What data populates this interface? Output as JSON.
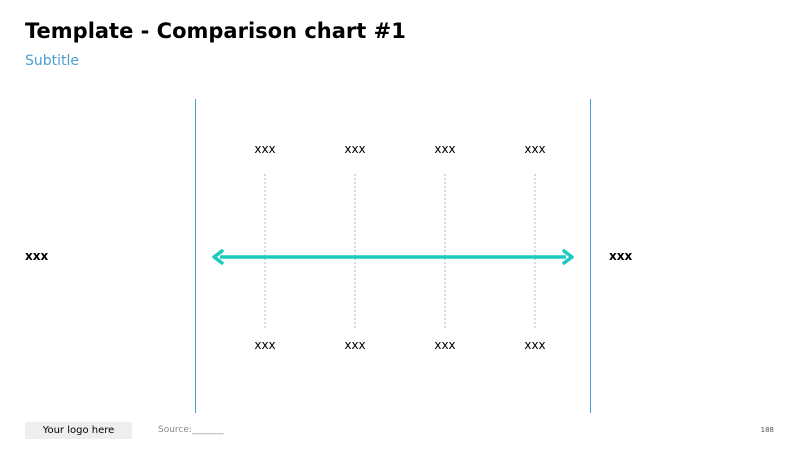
{
  "header": {
    "title": "Template - Comparison chart #1",
    "subtitle": "Subtitle"
  },
  "comparison": {
    "left_label": "xxx",
    "right_label": "xxx",
    "top_labels": [
      "xxx",
      "xxx",
      "xxx",
      "xxx"
    ],
    "bottom_labels": [
      "xxx",
      "xxx",
      "xxx",
      "xxx"
    ],
    "arrow_color": "#1ccbbf",
    "divider_color": "#4a9fd0"
  },
  "footer": {
    "logo": "Your logo here",
    "source": "Source:_______",
    "page_number": "188"
  }
}
